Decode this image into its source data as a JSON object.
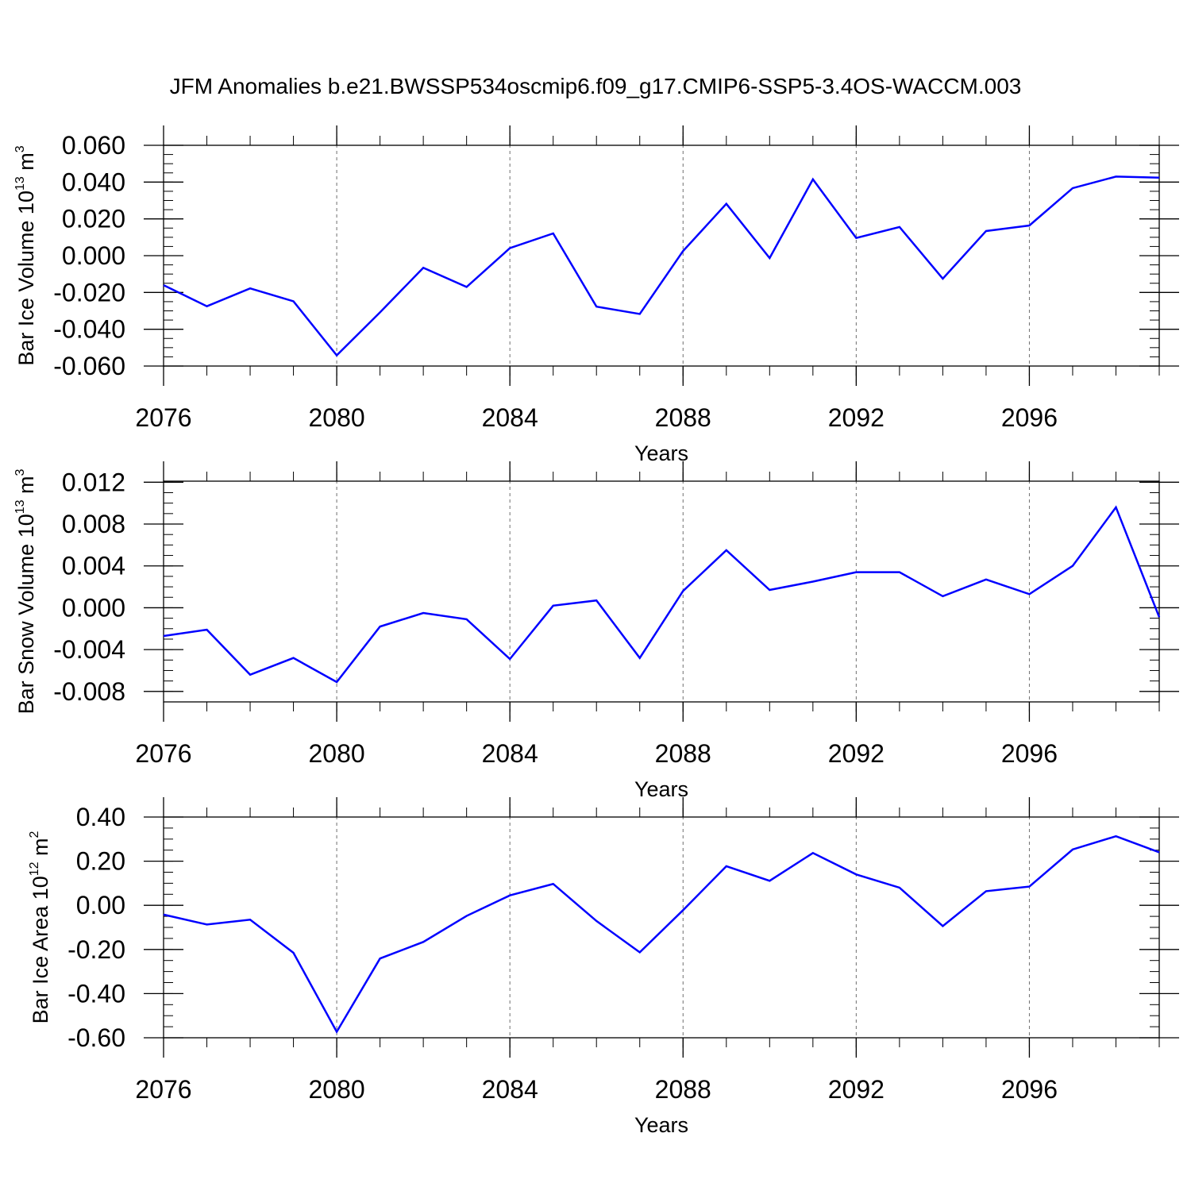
{
  "title": "JFM Anomalies b.e21.BWSSP534oscmip6.f09_g17.CMIP6-SSP5-3.4OS-WACCM.003",
  "colors": {
    "line": "#0000ff",
    "axis": "#000000",
    "grid": "#6f6f6f"
  },
  "chart_data": [
    {
      "type": "line",
      "ylabel": {
        "text": "Bar Ice Volume 10",
        "exp": "13",
        "unit": " m",
        "unit_exp": "3"
      },
      "xlabel": "Years",
      "xlim": [
        2076,
        2099
      ],
      "ylim": [
        -0.06,
        0.06
      ],
      "xticks": [
        2076,
        2080,
        2084,
        2088,
        2092,
        2096
      ],
      "xtick_labels": [
        "2076",
        "2080",
        "2084",
        "2088",
        "2092",
        "2096"
      ],
      "yticks": [
        -0.06,
        -0.04,
        -0.02,
        0.0,
        0.02,
        0.04,
        0.06
      ],
      "ytick_labels": [
        "-0.060",
        "-0.040",
        "-0.020",
        "0.000",
        "0.020",
        "0.040",
        "0.060"
      ],
      "yminor_step": 0.005,
      "grid_x": [
        2080,
        2084,
        2088,
        2092,
        2096
      ],
      "x": [
        2076,
        2077,
        2078,
        2079,
        2080,
        2081,
        2082,
        2083,
        2084,
        2085,
        2086,
        2087,
        2088,
        2089,
        2090,
        2091,
        2092,
        2093,
        2094,
        2095,
        2096,
        2097,
        2098,
        2099
      ],
      "values": [
        -0.016,
        -0.0275,
        -0.0178,
        -0.0248,
        -0.0542,
        -0.0308,
        -0.0066,
        -0.017,
        0.0041,
        0.0121,
        -0.0277,
        -0.0317,
        0.0025,
        0.0282,
        -0.0013,
        0.0415,
        0.0096,
        0.0156,
        -0.0125,
        0.0134,
        0.0164,
        0.0367,
        0.043,
        0.0424
      ]
    },
    {
      "type": "line",
      "ylabel": {
        "text": "Bar Snow Volume 10",
        "exp": "13",
        "unit": " m",
        "unit_exp": "3"
      },
      "xlabel": "Years",
      "xlim": [
        2076,
        2099
      ],
      "ylim": [
        -0.009,
        0.0121
      ],
      "xticks": [
        2076,
        2080,
        2084,
        2088,
        2092,
        2096
      ],
      "xtick_labels": [
        "2076",
        "2080",
        "2084",
        "2088",
        "2092",
        "2096"
      ],
      "yticks": [
        -0.008,
        -0.004,
        0.0,
        0.004,
        0.008,
        0.012
      ],
      "ytick_labels": [
        "-0.008",
        "-0.004",
        "0.000",
        "0.004",
        "0.008",
        "0.012"
      ],
      "yminor_step": 0.001,
      "grid_x": [
        2080,
        2084,
        2088,
        2092,
        2096
      ],
      "x": [
        2076,
        2077,
        2078,
        2079,
        2080,
        2081,
        2082,
        2083,
        2084,
        2085,
        2086,
        2087,
        2088,
        2089,
        2090,
        2091,
        2092,
        2093,
        2094,
        2095,
        2096,
        2097,
        2098,
        2099
      ],
      "values": [
        -0.0027,
        -0.0021,
        -0.0064,
        -0.0048,
        -0.0071,
        -0.0018,
        -0.0005,
        -0.0011,
        -0.0049,
        0.0002,
        0.0007,
        -0.0048,
        0.0016,
        0.0055,
        0.0017,
        0.0025,
        0.0034,
        0.0034,
        0.0011,
        0.0027,
        0.0013,
        0.004,
        0.0096,
        -0.0009
      ]
    },
    {
      "type": "line",
      "ylabel": {
        "text": "Bar Ice Area 10",
        "exp": "12",
        "unit": " m",
        "unit_exp": "2"
      },
      "xlabel": "Years",
      "xlim": [
        2076,
        2099
      ],
      "ylim": [
        -0.6,
        0.4
      ],
      "xticks": [
        2076,
        2080,
        2084,
        2088,
        2092,
        2096
      ],
      "xtick_labels": [
        "2076",
        "2080",
        "2084",
        "2088",
        "2092",
        "2096"
      ],
      "yticks": [
        -0.6,
        -0.4,
        -0.2,
        0.0,
        0.2,
        0.4
      ],
      "ytick_labels": [
        "-0.60",
        "-0.40",
        "-0.20",
        "0.00",
        "0.20",
        "0.40"
      ],
      "yminor_step": 0.05,
      "grid_x": [
        2080,
        2084,
        2088,
        2092,
        2096
      ],
      "x": [
        2076,
        2077,
        2078,
        2079,
        2080,
        2081,
        2082,
        2083,
        2084,
        2085,
        2086,
        2087,
        2088,
        2089,
        2090,
        2091,
        2092,
        2093,
        2094,
        2095,
        2096,
        2097,
        2098,
        2099
      ],
      "values": [
        -0.042,
        -0.087,
        -0.065,
        -0.215,
        -0.573,
        -0.241,
        -0.166,
        -0.048,
        0.045,
        0.097,
        -0.071,
        -0.213,
        -0.022,
        0.177,
        0.111,
        0.237,
        0.14,
        0.08,
        -0.094,
        0.064,
        0.085,
        0.253,
        0.313,
        0.24
      ]
    }
  ]
}
